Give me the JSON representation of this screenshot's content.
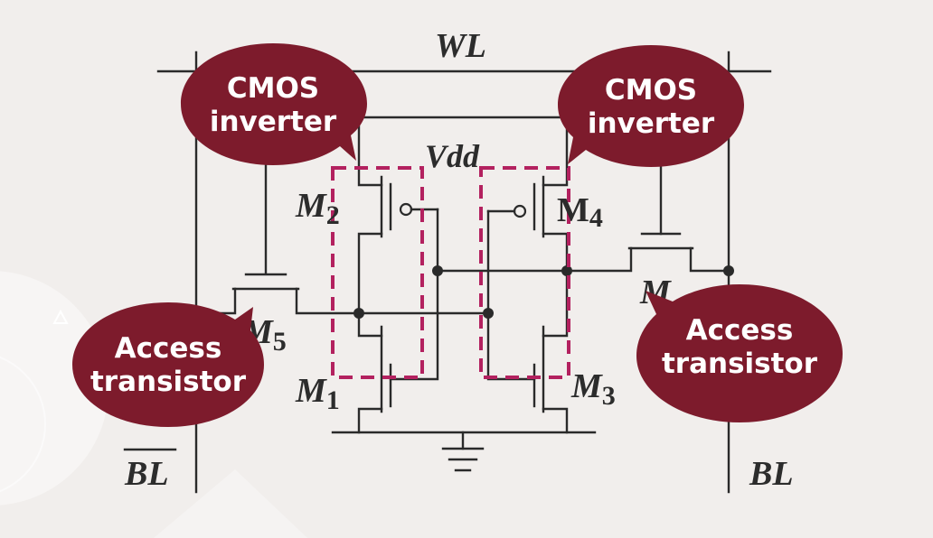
{
  "labels": {
    "word_line": "WL",
    "bit_line": "BL",
    "bit_line_bar": "BL",
    "vdd": "Vdd",
    "m1": {
      "base": "M",
      "sub": "1"
    },
    "m2": {
      "base": "M",
      "sub": "2"
    },
    "m3": {
      "base": "M",
      "sub": "3"
    },
    "m4": {
      "base": "M",
      "sub": "4"
    },
    "m5": {
      "base": "M",
      "sub": "5"
    },
    "m6": {
      "base": "M",
      "sub": ""
    }
  },
  "callouts": {
    "cmos_left": {
      "line1": "CMOS",
      "line2": "inverter"
    },
    "cmos_right": {
      "line1": "CMOS",
      "line2": "inverter"
    },
    "access_left": {
      "line1": "Access",
      "line2": "transistor"
    },
    "access_right": {
      "line1": "Access",
      "line2": "transistor"
    }
  },
  "colors": {
    "background": "#f1eeec",
    "wire": "#2a2a2a",
    "dashed_box": "#b3215f",
    "callout_fill": "#7d1b2c",
    "callout_text": "#ffffff"
  }
}
